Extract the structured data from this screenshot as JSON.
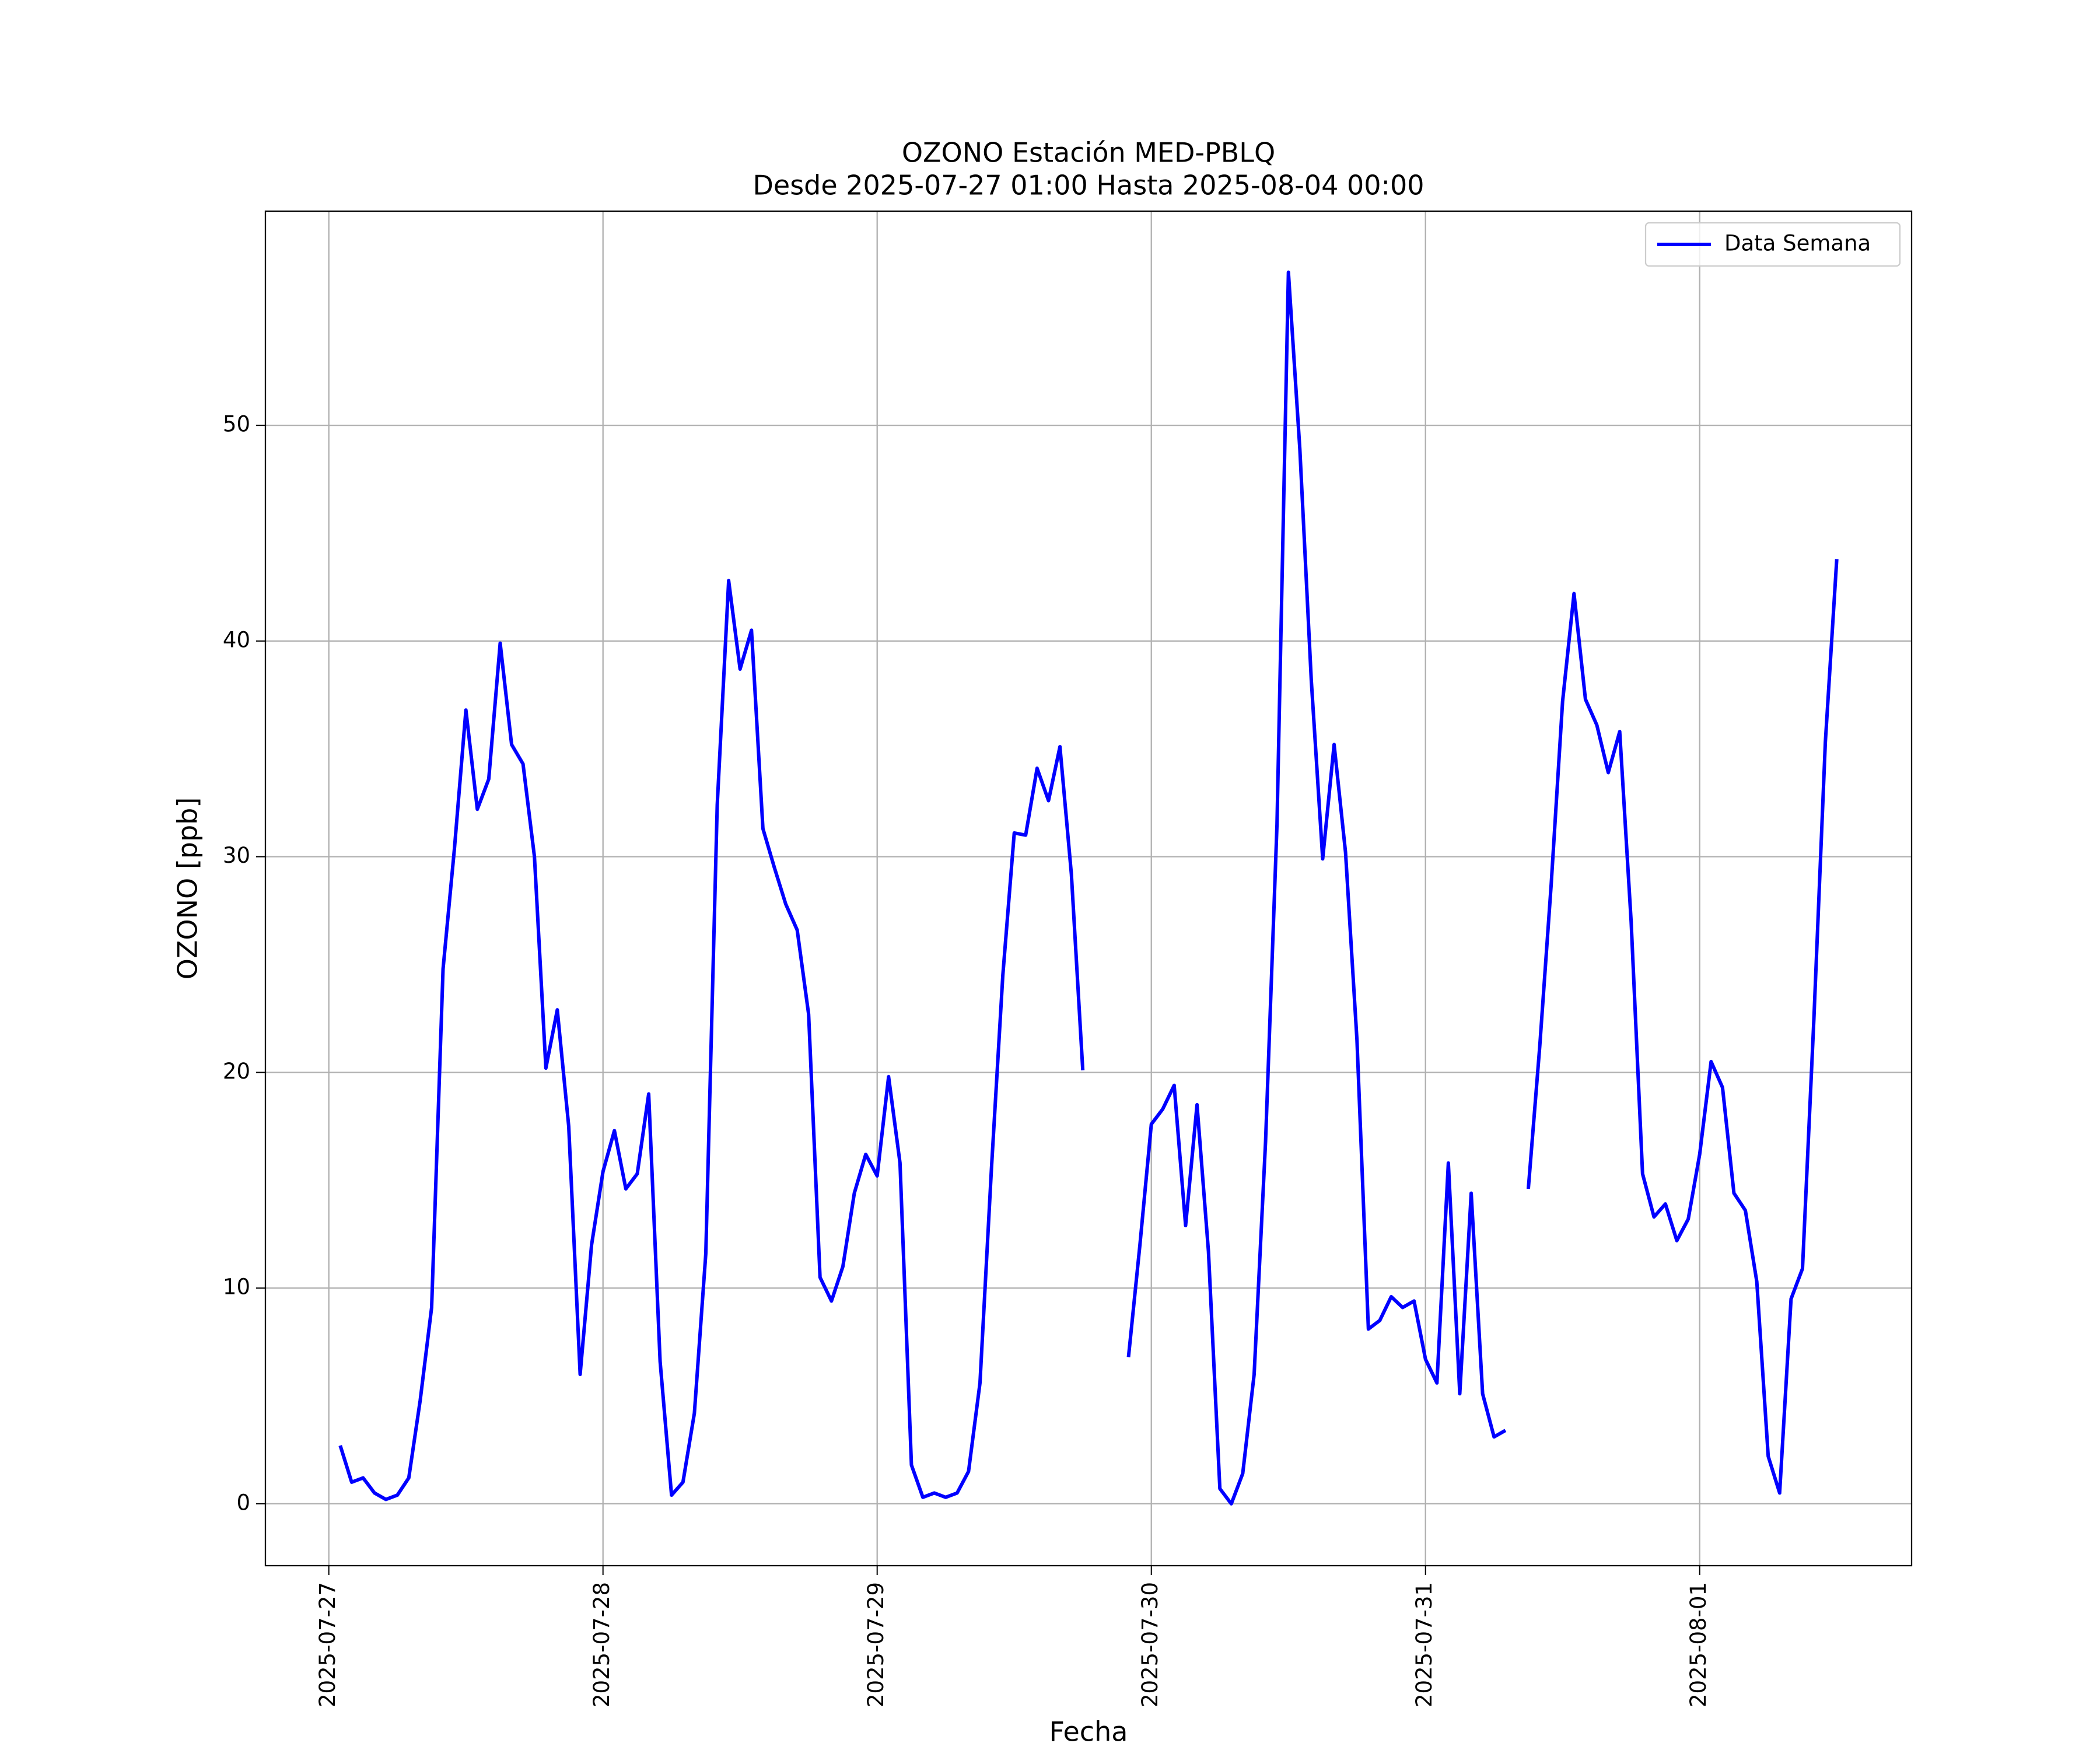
{
  "chart_data": {
    "type": "line",
    "title": "OZONO Estación MED-PBLQ",
    "subtitle": "Desde 2025-07-27 01:00 Hasta 2025-08-04 00:00",
    "x_label": "Fecha",
    "y_label": "OZONO [ppb]",
    "x": [
      "2025-07-27 01:00",
      "2025-07-27 02:00",
      "2025-07-27 03:00",
      "2025-07-27 04:00",
      "2025-07-27 05:00",
      "2025-07-27 06:00",
      "2025-07-27 07:00",
      "2025-07-27 08:00",
      "2025-07-27 09:00",
      "2025-07-27 10:00",
      "2025-07-27 11:00",
      "2025-07-27 12:00",
      "2025-07-27 13:00",
      "2025-07-27 14:00",
      "2025-07-27 15:00",
      "2025-07-27 16:00",
      "2025-07-27 17:00",
      "2025-07-27 18:00",
      "2025-07-27 19:00",
      "2025-07-27 20:00",
      "2025-07-27 21:00",
      "2025-07-27 22:00",
      "2025-07-27 23:00",
      "2025-07-28 00:00",
      "2025-07-28 01:00",
      "2025-07-28 02:00",
      "2025-07-28 03:00",
      "2025-07-28 04:00",
      "2025-07-28 05:00",
      "2025-07-28 06:00",
      "2025-07-28 07:00",
      "2025-07-28 08:00",
      "2025-07-28 09:00",
      "2025-07-28 10:00",
      "2025-07-28 11:00",
      "2025-07-28 12:00",
      "2025-07-28 13:00",
      "2025-07-28 14:00",
      "2025-07-28 15:00",
      "2025-07-28 16:00",
      "2025-07-28 17:00",
      "2025-07-28 18:00",
      "2025-07-28 19:00",
      "2025-07-28 20:00",
      "2025-07-28 21:00",
      "2025-07-28 22:00",
      "2025-07-28 23:00",
      "2025-07-29 00:00",
      "2025-07-29 01:00",
      "2025-07-29 02:00",
      "2025-07-29 03:00",
      "2025-07-29 04:00",
      "2025-07-29 05:00",
      "2025-07-29 06:00",
      "2025-07-29 07:00",
      "2025-07-29 08:00",
      "2025-07-29 09:00",
      "2025-07-29 10:00",
      "2025-07-29 11:00",
      "2025-07-29 12:00",
      "2025-07-29 13:00",
      "2025-07-29 14:00",
      "2025-07-29 15:00",
      "2025-07-29 16:00",
      "2025-07-29 17:00",
      "2025-07-29 18:00",
      "2025-07-29 19:00",
      "2025-07-29 20:00",
      "2025-07-29 21:00",
      "2025-07-29 22:00",
      "2025-07-29 23:00",
      "2025-07-30 00:00",
      "2025-07-30 01:00",
      "2025-07-30 02:00",
      "2025-07-30 03:00",
      "2025-07-30 04:00",
      "2025-07-30 05:00",
      "2025-07-30 06:00",
      "2025-07-30 07:00",
      "2025-07-30 08:00",
      "2025-07-30 09:00",
      "2025-07-30 10:00",
      "2025-07-30 11:00",
      "2025-07-30 12:00",
      "2025-07-30 13:00",
      "2025-07-30 14:00",
      "2025-07-30 15:00",
      "2025-07-30 16:00",
      "2025-07-30 17:00",
      "2025-07-30 18:00",
      "2025-07-30 19:00",
      "2025-07-30 20:00",
      "2025-07-30 21:00",
      "2025-07-30 22:00",
      "2025-07-30 23:00",
      "2025-07-31 00:00",
      "2025-07-31 01:00",
      "2025-07-31 02:00",
      "2025-07-31 03:00",
      "2025-07-31 04:00",
      "2025-07-31 05:00",
      "2025-07-31 06:00",
      "2025-07-31 07:00",
      "2025-07-31 08:00",
      "2025-07-31 09:00",
      "2025-07-31 10:00",
      "2025-07-31 11:00",
      "2025-07-31 12:00",
      "2025-07-31 13:00",
      "2025-07-31 14:00",
      "2025-07-31 15:00",
      "2025-07-31 16:00",
      "2025-07-31 17:00",
      "2025-07-31 18:00",
      "2025-07-31 19:00",
      "2025-07-31 20:00",
      "2025-07-31 21:00",
      "2025-07-31 22:00",
      "2025-07-31 23:00",
      "2025-08-01 00:00",
      "2025-08-01 01:00",
      "2025-08-01 02:00",
      "2025-08-01 03:00",
      "2025-08-01 04:00",
      "2025-08-01 05:00",
      "2025-08-01 06:00",
      "2025-08-01 07:00",
      "2025-08-01 08:00",
      "2025-08-01 09:00",
      "2025-08-01 10:00",
      "2025-08-01 11:00",
      "2025-08-01 12:00"
    ],
    "series": [
      {
        "name": "Data Semana",
        "color": "#0000ff",
        "values": [
          2.7,
          1.0,
          1.2,
          0.5,
          0.2,
          0.4,
          1.2,
          4.8,
          9.1,
          24.8,
          30.4,
          36.8,
          32.2,
          33.6,
          39.9,
          35.2,
          34.3,
          30.0,
          20.2,
          22.9,
          17.5,
          6.0,
          12.0,
          15.4,
          17.3,
          14.6,
          15.3,
          19.0,
          6.6,
          0.4,
          1.0,
          4.2,
          11.6,
          32.4,
          42.8,
          38.7,
          40.5,
          31.3,
          29.5,
          27.8,
          26.6,
          22.7,
          10.5,
          9.4,
          11.0,
          14.4,
          16.2,
          15.2,
          19.8,
          15.8,
          1.8,
          0.3,
          0.5,
          0.3,
          0.5,
          1.5,
          5.6,
          15.5,
          24.5,
          31.1,
          31.0,
          34.1,
          32.6,
          35.1,
          29.2,
          20.1,
          null,
          null,
          null,
          6.8,
          12.0,
          17.6,
          18.3,
          19.4,
          12.9,
          18.5,
          11.7,
          0.7,
          0.0,
          1.4,
          6.0,
          16.8,
          31.5,
          57.1,
          48.9,
          38.2,
          29.9,
          35.2,
          30.2,
          21.5,
          8.1,
          8.5,
          9.6,
          9.1,
          9.4,
          6.7,
          5.6,
          15.8,
          5.1,
          14.4,
          5.1,
          3.1,
          3.4,
          null,
          14.6,
          21.2,
          28.7,
          37.2,
          42.2,
          37.3,
          36.1,
          33.9,
          35.8,
          27.0,
          15.3,
          13.3,
          13.9,
          12.2,
          13.2,
          16.2,
          20.5,
          19.3,
          14.4,
          13.6,
          10.3,
          2.2,
          0.5,
          9.5,
          10.9,
          22.5,
          35.3,
          43.8
        ]
      }
    ],
    "xlim": [
      "2025-07-26 18:27",
      "2025-08-01 18:33"
    ],
    "xticks": [
      "2025-07-27",
      "2025-07-28",
      "2025-07-29",
      "2025-07-30",
      "2025-07-31",
      "2025-08-01"
    ],
    "ylim": [
      -2.87,
      59.93
    ],
    "yticks": [
      0,
      10,
      20,
      30,
      40,
      50
    ],
    "grid": true,
    "legend": "upper right"
  }
}
